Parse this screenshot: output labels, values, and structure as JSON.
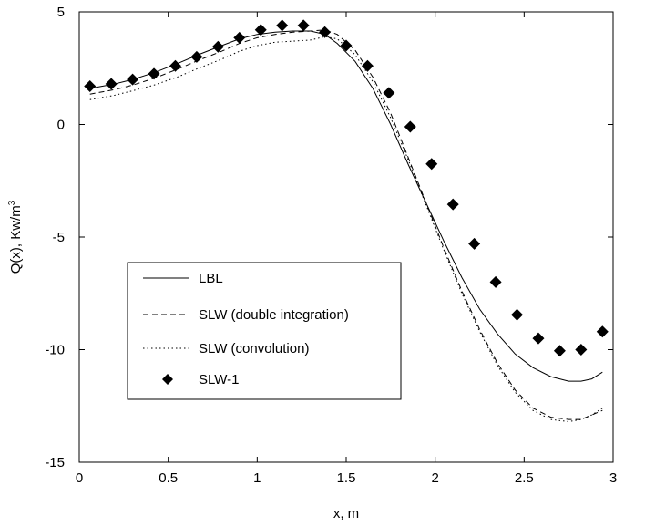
{
  "chart_data": {
    "type": "line",
    "title": "",
    "xlabel": "x, m",
    "ylabel_main": "Q(x), Kw/m",
    "ylabel_sup": "3",
    "xlim": [
      0,
      3
    ],
    "ylim": [
      -15,
      5
    ],
    "x_ticks": [
      {
        "value": 0,
        "label": "0"
      },
      {
        "value": 0.5,
        "label": "0.5"
      },
      {
        "value": 1,
        "label": "1"
      },
      {
        "value": 1.5,
        "label": "1.5"
      },
      {
        "value": 2,
        "label": "2"
      },
      {
        "value": 2.5,
        "label": "2.5"
      },
      {
        "value": 3,
        "label": "3"
      }
    ],
    "y_ticks": [
      {
        "value": 5,
        "label": "5"
      },
      {
        "value": 0,
        "label": "0"
      },
      {
        "value": -5,
        "label": "-5"
      },
      {
        "value": -10,
        "label": "-10"
      },
      {
        "value": -15,
        "label": "-15"
      }
    ],
    "grid": false,
    "legend_position": "bottom-left",
    "series": [
      {
        "name": "LBL",
        "style": "solid",
        "marker": "none",
        "color": "#000000",
        "x": [
          0.06,
          0.2,
          0.3,
          0.42,
          0.55,
          0.67,
          0.8,
          0.9,
          1.0,
          1.1,
          1.2,
          1.3,
          1.38,
          1.45,
          1.55,
          1.65,
          1.75,
          1.85,
          1.95,
          2.05,
          2.15,
          2.25,
          2.35,
          2.45,
          2.55,
          2.65,
          2.75,
          2.82,
          2.88,
          2.94
        ],
        "values": [
          1.6,
          1.8,
          2.0,
          2.3,
          2.7,
          3.1,
          3.5,
          3.8,
          4.0,
          4.1,
          4.15,
          4.15,
          4.0,
          3.6,
          2.8,
          1.6,
          0.0,
          -1.8,
          -3.5,
          -5.2,
          -6.8,
          -8.2,
          -9.3,
          -10.2,
          -10.8,
          -11.2,
          -11.4,
          -11.4,
          -11.3,
          -11.0
        ]
      },
      {
        "name": "SLW (double integration)",
        "style": "dashed",
        "marker": "none",
        "color": "#000000",
        "x": [
          0.06,
          0.2,
          0.3,
          0.42,
          0.55,
          0.67,
          0.8,
          0.9,
          1.0,
          1.1,
          1.2,
          1.3,
          1.38,
          1.45,
          1.55,
          1.65,
          1.75,
          1.85,
          1.95,
          2.05,
          2.15,
          2.25,
          2.35,
          2.45,
          2.55,
          2.65,
          2.75,
          2.82,
          2.88,
          2.94
        ],
        "values": [
          1.35,
          1.55,
          1.75,
          2.05,
          2.45,
          2.85,
          3.25,
          3.6,
          3.85,
          4.0,
          4.1,
          4.15,
          4.2,
          4.0,
          3.3,
          2.1,
          0.5,
          -1.5,
          -3.5,
          -5.5,
          -7.4,
          -9.1,
          -10.6,
          -11.8,
          -12.6,
          -13.0,
          -13.1,
          -13.1,
          -12.9,
          -12.7
        ]
      },
      {
        "name": "SLW (convolution)",
        "style": "dotted",
        "marker": "none",
        "color": "#000000",
        "x": [
          0.06,
          0.2,
          0.3,
          0.42,
          0.55,
          0.67,
          0.8,
          0.9,
          1.0,
          1.1,
          1.2,
          1.3,
          1.38,
          1.45,
          1.55,
          1.65,
          1.75,
          1.85,
          1.95,
          2.05,
          2.15,
          2.25,
          2.35,
          2.45,
          2.55,
          2.65,
          2.75,
          2.82,
          2.88,
          2.94
        ],
        "values": [
          1.1,
          1.3,
          1.5,
          1.75,
          2.1,
          2.5,
          2.9,
          3.25,
          3.5,
          3.65,
          3.7,
          3.75,
          3.9,
          3.8,
          3.1,
          1.9,
          0.3,
          -1.6,
          -3.6,
          -5.6,
          -7.5,
          -9.2,
          -10.7,
          -11.9,
          -12.7,
          -13.1,
          -13.2,
          -13.1,
          -12.9,
          -12.6
        ]
      },
      {
        "name": "SLW-1",
        "style": "none",
        "marker": "diamond",
        "color": "#000000",
        "x": [
          0.06,
          0.18,
          0.3,
          0.42,
          0.54,
          0.66,
          0.78,
          0.9,
          1.02,
          1.14,
          1.26,
          1.38,
          1.5,
          1.62,
          1.74,
          1.86,
          1.98,
          2.1,
          2.22,
          2.34,
          2.46,
          2.58,
          2.7,
          2.82,
          2.94
        ],
        "values": [
          1.7,
          1.8,
          2.0,
          2.25,
          2.6,
          3.0,
          3.45,
          3.85,
          4.2,
          4.4,
          4.4,
          4.1,
          3.5,
          2.6,
          1.4,
          -0.1,
          -1.75,
          -3.55,
          -5.3,
          -7.0,
          -8.45,
          -9.5,
          -10.05,
          -10.0,
          -9.2
        ]
      }
    ]
  }
}
